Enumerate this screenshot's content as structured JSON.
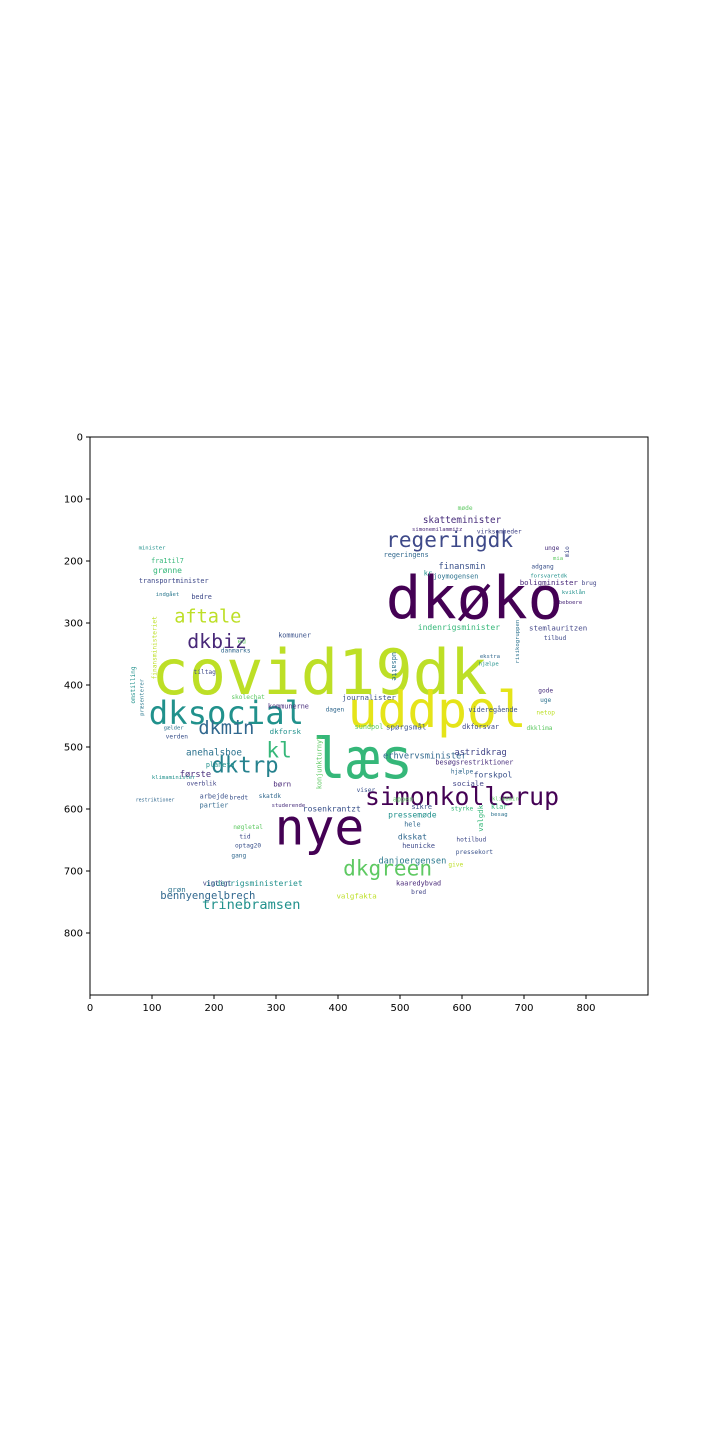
{
  "chart_data": {
    "type": "wordcloud",
    "title": "",
    "xlabel": "",
    "ylabel": "",
    "xlim": [
      0,
      900
    ],
    "ylim": [
      900,
      0
    ],
    "x_ticks": [
      "0",
      "100",
      "200",
      "300",
      "400",
      "500",
      "600",
      "700",
      "800"
    ],
    "y_ticks": [
      "0",
      "100",
      "200",
      "300",
      "400",
      "500",
      "600",
      "700",
      "800"
    ],
    "grid": false,
    "colormap": "viridis",
    "shape": "bird silhouette",
    "words": [
      {
        "text": "covid19dk",
        "x": 370,
        "y": 380,
        "size": 100,
        "color": "#bddf26",
        "rot": 0
      },
      {
        "text": "dkøko",
        "x": 620,
        "y": 260,
        "size": 95,
        "color": "#440154",
        "rot": 0
      },
      {
        "text": "uddpol",
        "x": 560,
        "y": 440,
        "size": 80,
        "color": "#e5e419",
        "rot": 0
      },
      {
        "text": "læs",
        "x": 440,
        "y": 520,
        "size": 90,
        "color": "#35b779",
        "rot": 0
      },
      {
        "text": "nye",
        "x": 370,
        "y": 630,
        "size": 80,
        "color": "#440154",
        "rot": 0
      },
      {
        "text": "dksocial",
        "x": 220,
        "y": 445,
        "size": 52,
        "color": "#21918c",
        "rot": 0
      },
      {
        "text": "simonkollerup",
        "x": 600,
        "y": 580,
        "size": 40,
        "color": "#440154",
        "rot": 0
      },
      {
        "text": "regeringdk",
        "x": 580,
        "y": 165,
        "size": 34,
        "color": "#3e4989",
        "rot": 0
      },
      {
        "text": "dkgreen",
        "x": 480,
        "y": 695,
        "size": 34,
        "color": "#5ec962",
        "rot": 0
      },
      {
        "text": "dkbiz",
        "x": 205,
        "y": 330,
        "size": 32,
        "color": "#482878",
        "rot": 0
      },
      {
        "text": "dktrp",
        "x": 250,
        "y": 530,
        "size": 36,
        "color": "#26828e",
        "rot": 0
      },
      {
        "text": "dkmin",
        "x": 220,
        "y": 470,
        "size": 30,
        "color": "#31688e",
        "rot": 0
      },
      {
        "text": "kl",
        "x": 305,
        "y": 505,
        "size": 34,
        "color": "#35b779",
        "rot": 0
      },
      {
        "text": "aftale",
        "x": 190,
        "y": 290,
        "size": 30,
        "color": "#bddf26",
        "rot": 0
      },
      {
        "text": "trinebramsen",
        "x": 260,
        "y": 755,
        "size": 22,
        "color": "#21918c",
        "rot": 0
      },
      {
        "text": "skatteminister",
        "x": 600,
        "y": 135,
        "size": 15,
        "color": "#472d7b",
        "rot": 0
      },
      {
        "text": "bennyengelbrech",
        "x": 190,
        "y": 740,
        "size": 17,
        "color": "#31688e",
        "rot": 0
      },
      {
        "text": "anehalsboe",
        "x": 200,
        "y": 510,
        "size": 15,
        "color": "#2c728e",
        "rot": 0
      },
      {
        "text": "finansmin",
        "x": 600,
        "y": 210,
        "size": 14,
        "color": "#3b528b",
        "rot": 0
      },
      {
        "text": "indenrigsministeriet",
        "x": 265,
        "y": 720,
        "size": 13,
        "color": "#21918c",
        "rot": 0
      },
      {
        "text": "danjoergensen",
        "x": 520,
        "y": 685,
        "size": 14,
        "color": "#2a788e",
        "rot": 0
      },
      {
        "text": "indenrigsminister",
        "x": 595,
        "y": 307,
        "size": 13,
        "color": "#35b779",
        "rot": 0
      },
      {
        "text": "erhvervsminister",
        "x": 540,
        "y": 515,
        "size": 14,
        "color": "#31688e",
        "rot": 0
      },
      {
        "text": "astridkrag",
        "x": 630,
        "y": 510,
        "size": 14,
        "color": "#414487",
        "rot": 0
      },
      {
        "text": "forskpol",
        "x": 650,
        "y": 545,
        "size": 13,
        "color": "#3b528b",
        "rot": 0
      },
      {
        "text": "pressemøde",
        "x": 520,
        "y": 610,
        "size": 13,
        "color": "#21918c",
        "rot": 0
      },
      {
        "text": "rosenkrantzt",
        "x": 390,
        "y": 600,
        "size": 13,
        "color": "#3b528b",
        "rot": 0
      },
      {
        "text": "dkskat",
        "x": 520,
        "y": 645,
        "size": 13,
        "color": "#31688e",
        "rot": 0
      },
      {
        "text": "stemlauritzen",
        "x": 755,
        "y": 308,
        "size": 12,
        "color": "#414487",
        "rot": 0
      },
      {
        "text": "boligminister",
        "x": 740,
        "y": 235,
        "size": 12,
        "color": "#482878",
        "rot": 0
      },
      {
        "text": "journalister",
        "x": 450,
        "y": 420,
        "size": 12,
        "color": "#3b528b",
        "rot": 0
      },
      {
        "text": "regeringens",
        "x": 510,
        "y": 190,
        "size": 11,
        "color": "#31688e",
        "rot": 0
      },
      {
        "text": "joymogensen",
        "x": 590,
        "y": 225,
        "size": 11,
        "color": "#2c728e",
        "rot": 0
      },
      {
        "text": "første",
        "x": 170,
        "y": 545,
        "size": 14,
        "color": "#472d7b",
        "rot": 0
      },
      {
        "text": "grønne",
        "x": 125,
        "y": 215,
        "size": 13,
        "color": "#35b779",
        "rot": 0
      },
      {
        "text": "fra1til7",
        "x": 125,
        "y": 200,
        "size": 11,
        "color": "#35b779",
        "rot": 0
      },
      {
        "text": "transportminister",
        "x": 135,
        "y": 232,
        "size": 11,
        "color": "#3e4989",
        "rot": 0
      },
      {
        "text": "minister",
        "x": 100,
        "y": 180,
        "size": 9,
        "color": "#21918c",
        "rot": 0
      },
      {
        "text": "bedre",
        "x": 180,
        "y": 258,
        "size": 11,
        "color": "#3e4989",
        "rot": 0
      },
      {
        "text": "indgået",
        "x": 125,
        "y": 255,
        "size": 9,
        "color": "#2a788e",
        "rot": 0
      },
      {
        "text": "eu",
        "x": 245,
        "y": 330,
        "size": 11,
        "color": "#5ec962",
        "rot": 0
      },
      {
        "text": "danmarks",
        "x": 235,
        "y": 345,
        "size": 10,
        "color": "#31688e",
        "rot": 0
      },
      {
        "text": "kommuner",
        "x": 330,
        "y": 320,
        "size": 11,
        "color": "#3b528b",
        "rot": 0
      },
      {
        "text": "kommunerne",
        "x": 320,
        "y": 435,
        "size": 11,
        "color": "#472d7b",
        "rot": 0
      },
      {
        "text": "dkforsk",
        "x": 315,
        "y": 475,
        "size": 12,
        "color": "#21918c",
        "rot": 0
      },
      {
        "text": "tiltag",
        "x": 185,
        "y": 380,
        "size": 10,
        "color": "#3e4989",
        "rot": 0
      },
      {
        "text": "skolechat",
        "x": 255,
        "y": 420,
        "size": 10,
        "color": "#5ec962",
        "rot": 0
      },
      {
        "text": "gælder",
        "x": 135,
        "y": 470,
        "size": 9,
        "color": "#2c728e",
        "rot": 0
      },
      {
        "text": "verden",
        "x": 140,
        "y": 484,
        "size": 10,
        "color": "#3b528b",
        "rot": 0
      },
      {
        "text": "planeta",
        "x": 210,
        "y": 529,
        "size": 11,
        "color": "#21918c",
        "rot": 0
      },
      {
        "text": "børn",
        "x": 310,
        "y": 560,
        "size": 12,
        "color": "#482878",
        "rot": 0
      },
      {
        "text": "overblik",
        "x": 180,
        "y": 560,
        "size": 10,
        "color": "#414487",
        "rot": 0
      },
      {
        "text": "klimaminister",
        "x": 135,
        "y": 550,
        "size": 9,
        "color": "#21918c",
        "rot": 0
      },
      {
        "text": "restriktioner",
        "x": 105,
        "y": 586,
        "size": 8,
        "color": "#31688e",
        "rot": 0
      },
      {
        "text": "arbejde",
        "x": 200,
        "y": 580,
        "size": 11,
        "color": "#3b528b",
        "rot": 0
      },
      {
        "text": "partier",
        "x": 200,
        "y": 594,
        "size": 11,
        "color": "#31688e",
        "rot": 0
      },
      {
        "text": "bredt",
        "x": 240,
        "y": 582,
        "size": 10,
        "color": "#3b528b",
        "rot": 0
      },
      {
        "text": "skatdk",
        "x": 290,
        "y": 580,
        "size": 10,
        "color": "#31688e",
        "rot": 0
      },
      {
        "text": "nøgletal",
        "x": 255,
        "y": 630,
        "size": 10,
        "color": "#5ec962",
        "rot": 0
      },
      {
        "text": "tid",
        "x": 250,
        "y": 645,
        "size": 10,
        "color": "#3e4989",
        "rot": 0
      },
      {
        "text": "optag20",
        "x": 255,
        "y": 660,
        "size": 10,
        "color": "#3b528b",
        "rot": 0
      },
      {
        "text": "gang",
        "x": 240,
        "y": 676,
        "size": 10,
        "color": "#31688e",
        "rot": 0
      },
      {
        "text": "vigtigt",
        "x": 205,
        "y": 720,
        "size": 11,
        "color": "#414487",
        "rot": 0
      },
      {
        "text": "grøn",
        "x": 140,
        "y": 730,
        "size": 12,
        "color": "#2c728e",
        "rot": 0
      },
      {
        "text": "kaaredybvad",
        "x": 530,
        "y": 720,
        "size": 11,
        "color": "#482878",
        "rot": 0
      },
      {
        "text": "valgfakta",
        "x": 430,
        "y": 740,
        "size": 12,
        "color": "#bddf26",
        "rot": 0
      },
      {
        "text": "heunicke",
        "x": 530,
        "y": 660,
        "size": 11,
        "color": "#3e4989",
        "rot": 0
      },
      {
        "text": "sikre",
        "x": 535,
        "y": 597,
        "size": 11,
        "color": "#3b528b",
        "rot": 0
      },
      {
        "text": "hele",
        "x": 520,
        "y": 625,
        "size": 11,
        "color": "#31688e",
        "rot": 0
      },
      {
        "text": "appen",
        "x": 505,
        "y": 585,
        "size": 11,
        "color": "#5ec962",
        "rot": 0
      },
      {
        "text": "sociale",
        "x": 610,
        "y": 559,
        "size": 12,
        "color": "#414487",
        "rot": 0
      },
      {
        "text": "spørgsmål",
        "x": 510,
        "y": 468,
        "size": 12,
        "color": "#3b528b",
        "rot": 0
      },
      {
        "text": "sundpol",
        "x": 450,
        "y": 468,
        "size": 11,
        "color": "#5ec962",
        "rot": 0
      },
      {
        "text": "dkforsvar",
        "x": 630,
        "y": 468,
        "size": 11,
        "color": "#3e4989",
        "rot": 0
      },
      {
        "text": "videregående",
        "x": 650,
        "y": 440,
        "size": 11,
        "color": "#3b528b",
        "rot": 0
      },
      {
        "text": "besøgsrestriktioner",
        "x": 620,
        "y": 525,
        "size": 11,
        "color": "#472d7b",
        "rot": 0
      },
      {
        "text": "klimamin",
        "x": 670,
        "y": 585,
        "size": 9,
        "color": "#5ec962",
        "rot": 0
      },
      {
        "text": "hjælpe",
        "x": 600,
        "y": 540,
        "size": 10,
        "color": "#31688e",
        "rot": 0
      },
      {
        "text": "styrke",
        "x": 600,
        "y": 600,
        "size": 10,
        "color": "#35b779",
        "rot": 0
      },
      {
        "text": "besag",
        "x": 660,
        "y": 610,
        "size": 9,
        "color": "#2c728e",
        "rot": 0
      },
      {
        "text": "klar",
        "x": 660,
        "y": 597,
        "size": 11,
        "color": "#35b779",
        "rot": 0
      },
      {
        "text": "hotilbud",
        "x": 615,
        "y": 650,
        "size": 10,
        "color": "#3e4989",
        "rot": 0
      },
      {
        "text": "pressekort",
        "x": 620,
        "y": 670,
        "size": 10,
        "color": "#3b528b",
        "rot": 0
      },
      {
        "text": "give",
        "x": 590,
        "y": 690,
        "size": 10,
        "color": "#bddf26",
        "rot": 0
      },
      {
        "text": "bred",
        "x": 530,
        "y": 735,
        "size": 10,
        "color": "#414487",
        "rot": 0
      },
      {
        "text": "dkklima",
        "x": 725,
        "y": 470,
        "size": 10,
        "color": "#5ec962",
        "rot": 0
      },
      {
        "text": "netop",
        "x": 735,
        "y": 445,
        "size": 10,
        "color": "#bddf26",
        "rot": 0
      },
      {
        "text": "uge",
        "x": 735,
        "y": 425,
        "size": 10,
        "color": "#2c728e",
        "rot": 0
      },
      {
        "text": "gode",
        "x": 735,
        "y": 410,
        "size": 10,
        "color": "#472d7b",
        "rot": 0
      },
      {
        "text": "tilbud",
        "x": 750,
        "y": 325,
        "size": 10,
        "color": "#3e4989",
        "rot": 0
      },
      {
        "text": "beboere",
        "x": 775,
        "y": 268,
        "size": 9,
        "color": "#482878",
        "rot": 0
      },
      {
        "text": "kviklån",
        "x": 780,
        "y": 252,
        "size": 9,
        "color": "#21918c",
        "rot": 0
      },
      {
        "text": "brug",
        "x": 805,
        "y": 236,
        "size": 10,
        "color": "#414487",
        "rot": 0
      },
      {
        "text": "unge",
        "x": 745,
        "y": 180,
        "size": 10,
        "color": "#472d7b",
        "rot": 0
      },
      {
        "text": "adgang",
        "x": 730,
        "y": 210,
        "size": 10,
        "color": "#3b528b",
        "rot": 0
      },
      {
        "text": "forsvaretdk",
        "x": 740,
        "y": 225,
        "size": 9,
        "color": "#21918c",
        "rot": 0
      },
      {
        "text": "mia",
        "x": 755,
        "y": 197,
        "size": 9,
        "color": "#5ec962",
        "rot": 0
      },
      {
        "text": "virksomheder",
        "x": 660,
        "y": 153,
        "size": 10,
        "color": "#414487",
        "rot": 0
      },
      {
        "text": "simonemilammitz",
        "x": 560,
        "y": 150,
        "size": 9,
        "color": "#482878",
        "rot": 0
      },
      {
        "text": "møde",
        "x": 605,
        "y": 115,
        "size": 10,
        "color": "#5ec962",
        "rot": 0
      },
      {
        "text": "ekstra",
        "x": 645,
        "y": 355,
        "size": 9,
        "color": "#31688e",
        "rot": 0
      },
      {
        "text": "hjælpe",
        "x": 643,
        "y": 367,
        "size": 9,
        "color": "#21918c",
        "rot": 0
      },
      {
        "text": "udsatte",
        "x": 490,
        "y": 370,
        "size": 11,
        "color": "#2c728e",
        "rot": 90
      },
      {
        "text": "valgdk",
        "x": 630,
        "y": 615,
        "size": 12,
        "color": "#35b779",
        "rot": -90
      },
      {
        "text": "konjunkturnyt",
        "x": 370,
        "y": 525,
        "size": 11,
        "color": "#5ec962",
        "rot": -90
      },
      {
        "text": "finansministeriet",
        "x": 105,
        "y": 340,
        "size": 10,
        "color": "#bddf26",
        "rot": -90
      },
      {
        "text": "omstilling",
        "x": 70,
        "y": 400,
        "size": 10,
        "color": "#21918c",
        "rot": -90
      },
      {
        "text": "præsenterer",
        "x": 85,
        "y": 420,
        "size": 9,
        "color": "#2a788e",
        "rot": -90
      },
      {
        "text": "mio",
        "x": 770,
        "y": 185,
        "size": 10,
        "color": "#3e4989",
        "rot": -90
      },
      {
        "text": "risikogruppen",
        "x": 690,
        "y": 330,
        "size": 9,
        "color": "#2c728e",
        "rot": -90
      },
      {
        "text": "studerende",
        "x": 320,
        "y": 595,
        "size": 9,
        "color": "#472d7b",
        "rot": 0
      },
      {
        "text": "viser",
        "x": 445,
        "y": 570,
        "size": 10,
        "color": "#3b528b",
        "rot": 0
      },
      {
        "text": "dagen",
        "x": 395,
        "y": 440,
        "size": 10,
        "color": "#31688e",
        "rot": 0
      },
      {
        "text": "kr",
        "x": 545,
        "y": 220,
        "size": 11,
        "color": "#21918c",
        "rot": 0
      }
    ]
  }
}
